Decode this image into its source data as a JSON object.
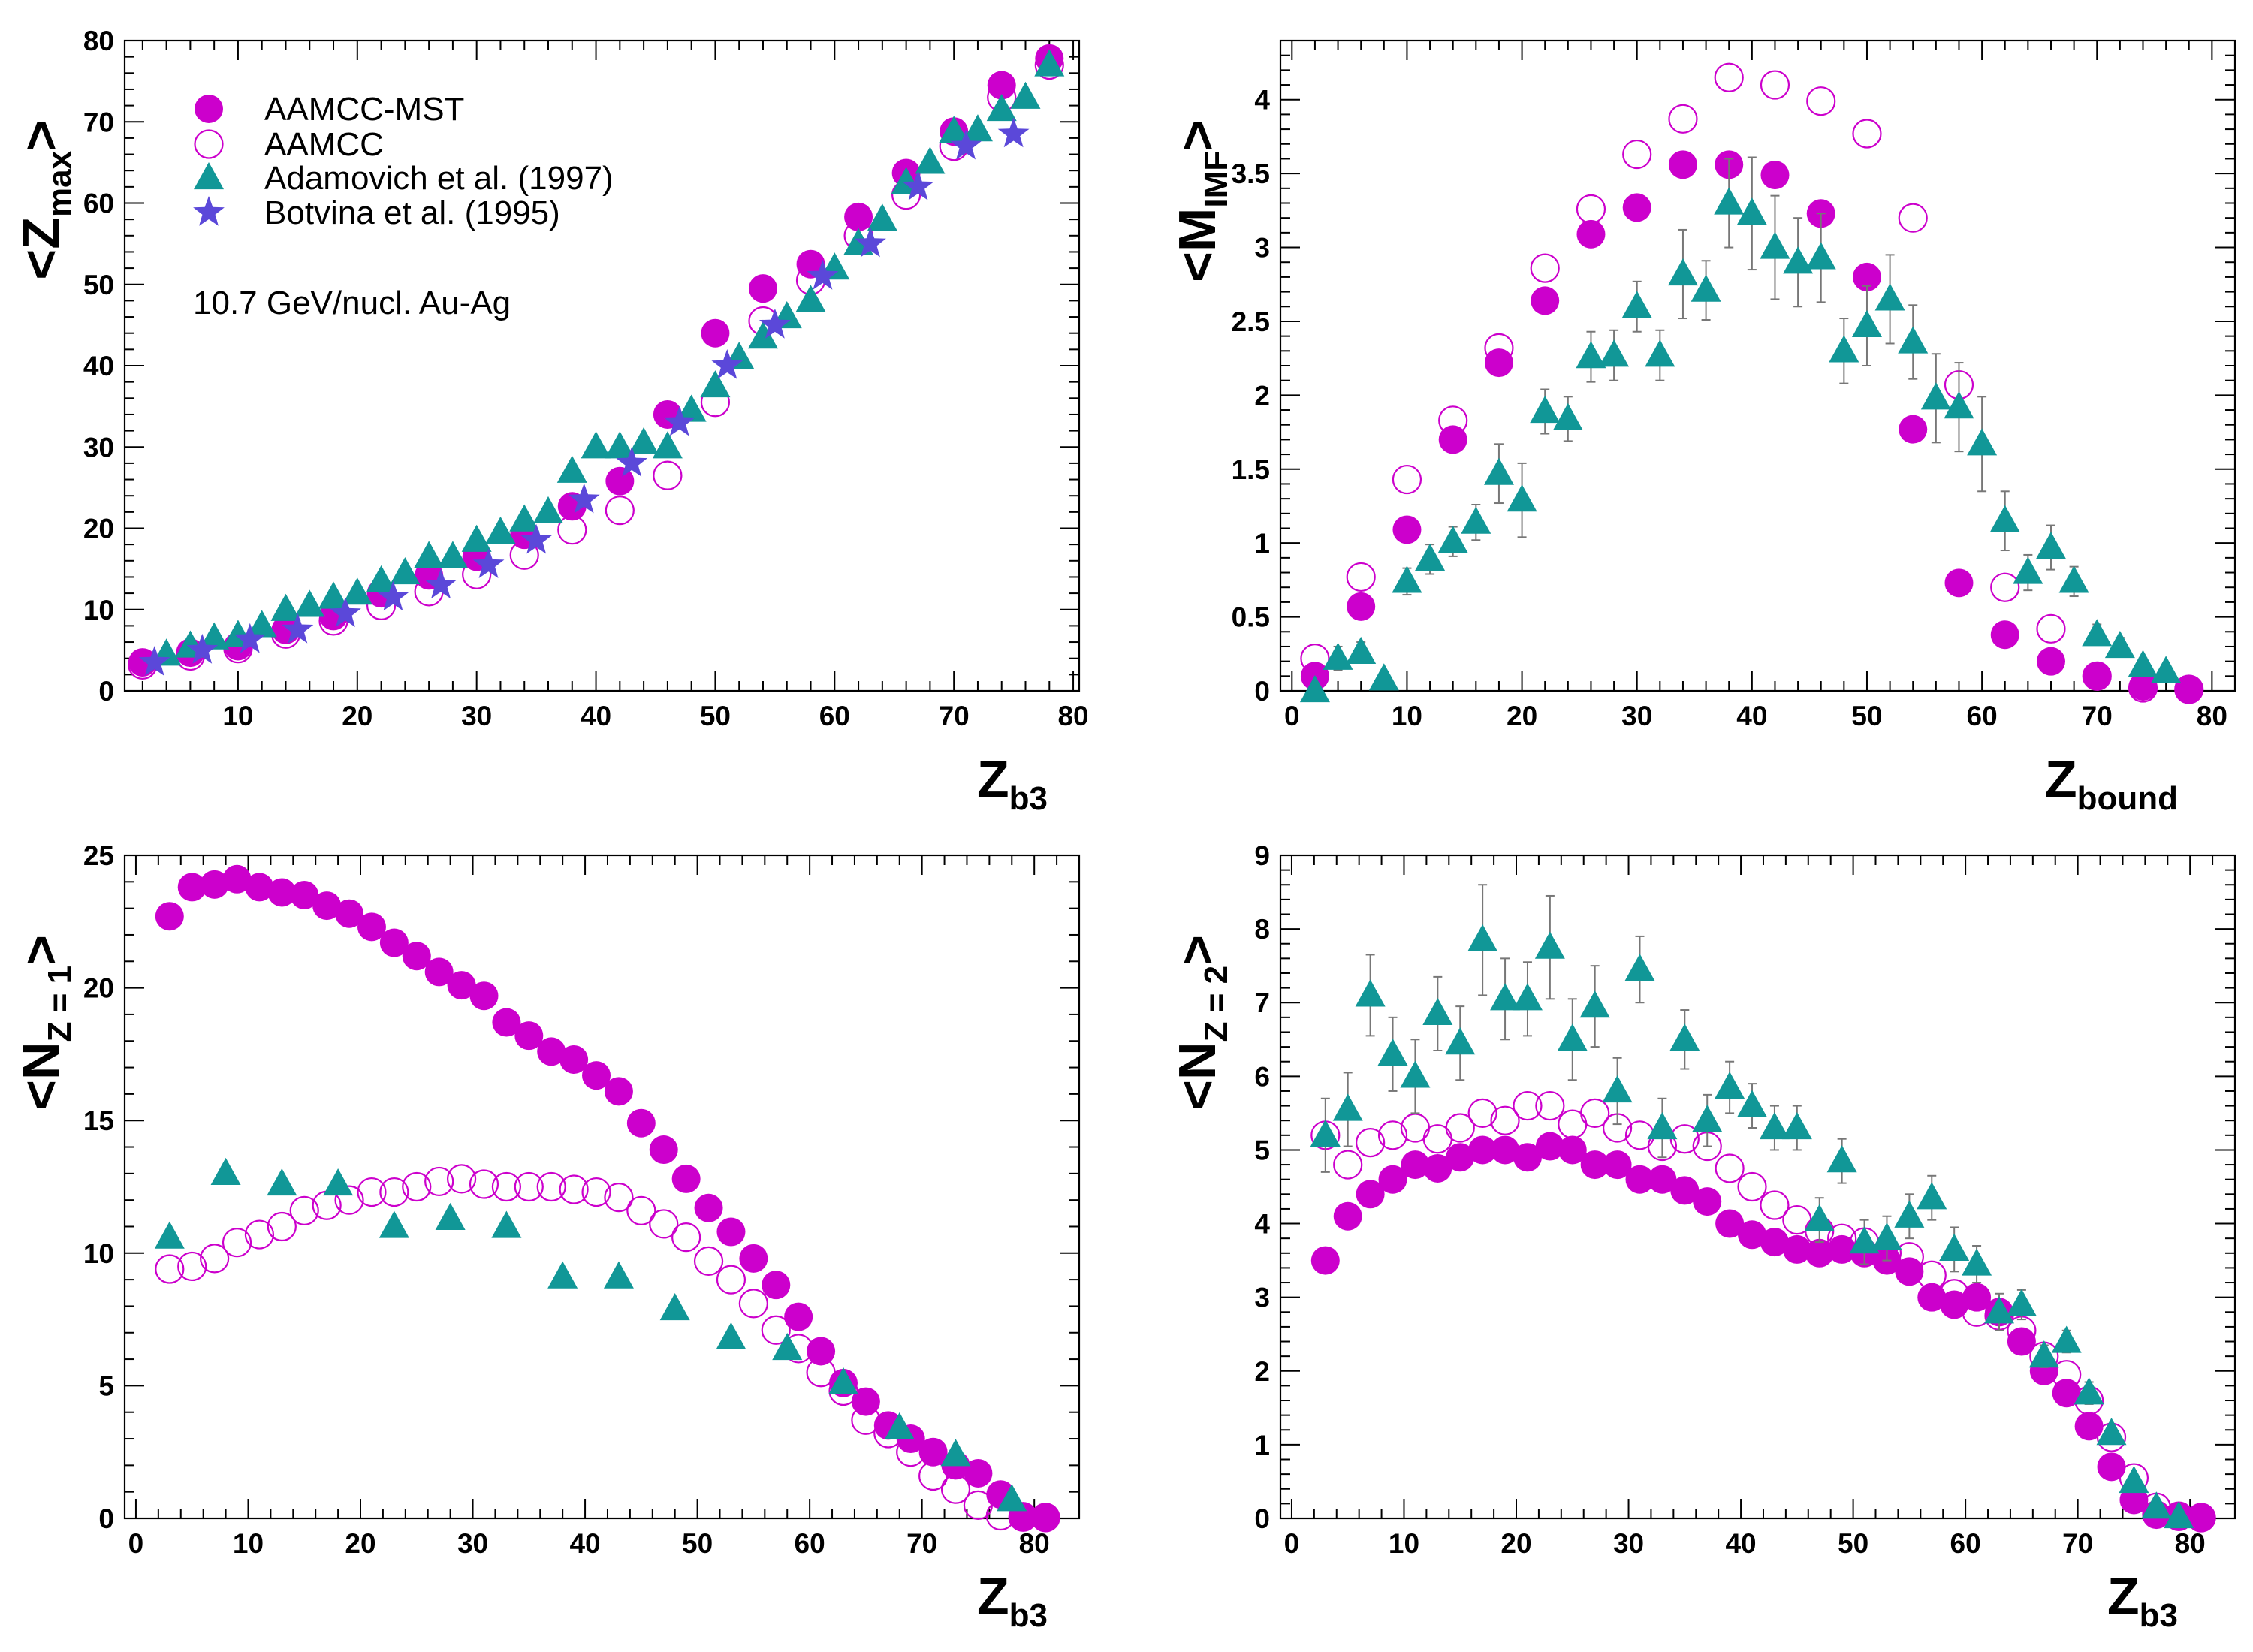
{
  "colors": {
    "mst": "#cc00cc",
    "aamcc": "#cc00cc",
    "adamovich": "#119797",
    "botvina": "#5b48d9",
    "errbar": "#777777"
  },
  "legend": {
    "mst": "AAMCC-MST",
    "aamcc": "AAMCC",
    "adamovich": "Adamovich et al. (1997)",
    "botvina": "Botvina et al. (1995)",
    "annotation": "10.7 GeV/nucl. Au-Ag"
  },
  "chart_data": [
    {
      "type": "scatter",
      "id": "zmax",
      "ylabel": {
        "main": "<Z",
        "sub": "max",
        "close": ">"
      },
      "xlabel": {
        "main": "Z",
        "sub": "b3"
      },
      "xlim": [
        0.5,
        80.5
      ],
      "ylim": [
        0,
        80
      ],
      "xticks": [
        10,
        20,
        30,
        40,
        50,
        60,
        70,
        80
      ],
      "yticks": [
        0,
        10,
        20,
        30,
        40,
        50,
        60,
        70,
        80
      ],
      "series": [
        {
          "name": "AAMCC-MST",
          "marker": "filled-circle",
          "x": [
            2,
            6,
            10,
            14,
            18,
            22,
            26,
            30,
            34,
            38,
            42,
            46,
            50,
            54,
            58,
            62,
            66,
            70,
            74,
            78
          ],
          "y": [
            3.5,
            4.7,
            5.5,
            7.5,
            9.2,
            12,
            14.2,
            16.5,
            19.2,
            22.7,
            25.8,
            34,
            44,
            49.5,
            52.5,
            58.3,
            63.7,
            68.8,
            74.5,
            77.8
          ]
        },
        {
          "name": "AAMCC",
          "marker": "open-circle",
          "x": [
            2,
            6,
            10,
            14,
            18,
            22,
            26,
            30,
            34,
            38,
            42,
            46,
            50,
            54,
            58,
            62,
            66,
            70,
            74,
            78
          ],
          "y": [
            3.2,
            4.3,
            5.2,
            7,
            8.6,
            10.5,
            12.2,
            14.3,
            16.7,
            19.8,
            22.2,
            26.5,
            35.5,
            45.5,
            50.5,
            56,
            61,
            67,
            73,
            77
          ]
        },
        {
          "name": "Adamovich et al. (1997)",
          "marker": "triangle",
          "x": [
            4,
            6,
            8,
            10,
            12,
            14,
            16,
            18,
            20,
            22,
            24,
            26,
            28,
            30,
            32,
            34,
            36,
            38,
            40,
            42,
            44,
            46,
            48,
            50,
            52,
            54,
            56,
            58,
            60,
            62,
            64,
            66,
            68,
            70,
            72,
            74,
            76,
            78
          ],
          "y": [
            4.5,
            5.5,
            6.5,
            6.8,
            8,
            10,
            10.5,
            11.5,
            12,
            13.5,
            14.5,
            16.5,
            16.5,
            18.5,
            19.5,
            21,
            22,
            27,
            30,
            30,
            30.5,
            30,
            34.5,
            37.5,
            41,
            43.5,
            46,
            48,
            52,
            55,
            58,
            62.5,
            65,
            68.8,
            69,
            71.5,
            73,
            77
          ]
        },
        {
          "name": "Botvina et al. (1995)",
          "marker": "star",
          "x": [
            3,
            7,
            11,
            15,
            19,
            23,
            27,
            31,
            35,
            39,
            43,
            47,
            51,
            55,
            59,
            63,
            67,
            71,
            75
          ],
          "y": [
            3.5,
            5,
            6.3,
            7.5,
            9.5,
            11.5,
            13,
            15.5,
            18.5,
            23.5,
            28,
            33,
            40,
            45,
            51,
            55,
            62,
            67,
            68.5
          ]
        }
      ]
    },
    {
      "type": "scatter",
      "id": "mimf",
      "ylabel": {
        "main": "<M",
        "sub": "IMF",
        "close": ">"
      },
      "xlabel": {
        "main": "Z",
        "sub": "bound"
      },
      "xlim": [
        -1,
        82
      ],
      "ylim": [
        0,
        4.4
      ],
      "xticks": [
        0,
        10,
        20,
        30,
        40,
        50,
        60,
        70,
        80
      ],
      "yticks": [
        0,
        0.5,
        1,
        1.5,
        2,
        2.5,
        3,
        3.5,
        4
      ],
      "series": [
        {
          "name": "AAMCC-MST",
          "marker": "filled-circle",
          "x": [
            2,
            6,
            10,
            14,
            18,
            22,
            26,
            30,
            34,
            38,
            42,
            46,
            50,
            54,
            58,
            62,
            66,
            70,
            74,
            78
          ],
          "y": [
            0.1,
            0.57,
            1.09,
            1.7,
            2.22,
            2.64,
            3.09,
            3.27,
            3.56,
            3.56,
            3.49,
            3.23,
            2.8,
            1.77,
            0.73,
            0.38,
            0.2,
            0.1,
            0.03,
            0.01
          ]
        },
        {
          "name": "AAMCC",
          "marker": "open-circle",
          "x": [
            2,
            6,
            10,
            14,
            18,
            22,
            26,
            30,
            34,
            38,
            42,
            46,
            50,
            54,
            58,
            62,
            66,
            70,
            74,
            78
          ],
          "y": [
            0.22,
            0.77,
            1.43,
            1.83,
            2.32,
            2.86,
            3.26,
            3.63,
            3.87,
            4.15,
            4.1,
            3.99,
            3.77,
            3.2,
            2.07,
            0.7,
            0.42,
            0.1,
            0.02,
            0.01
          ]
        },
        {
          "name": "Adamovich et al. (1997)",
          "marker": "triangle",
          "x": [
            2,
            4,
            6,
            8,
            10,
            12,
            14,
            16,
            18,
            20,
            22,
            24,
            26,
            28,
            30,
            32,
            34,
            36,
            38,
            40,
            42,
            44,
            46,
            48,
            50,
            52,
            54,
            56,
            58,
            60,
            62,
            64,
            66,
            68,
            70,
            72,
            74,
            76
          ],
          "y": [
            0,
            0.22,
            0.26,
            0.08,
            0.74,
            0.89,
            1.01,
            1.14,
            1.47,
            1.29,
            1.89,
            1.84,
            2.26,
            2.27,
            2.6,
            2.27,
            2.82,
            2.71,
            3.3,
            3.23,
            3,
            2.9,
            2.93,
            2.3,
            2.47,
            2.65,
            2.36,
            1.98,
            1.92,
            1.67,
            1.15,
            0.8,
            0.97,
            0.74,
            0.38,
            0.3,
            0.17,
            0.13
          ],
          "err": [
            0.02,
            0.08,
            0.07,
            0.05,
            0.09,
            0.1,
            0.1,
            0.12,
            0.2,
            0.25,
            0.15,
            0.15,
            0.17,
            0.17,
            0.17,
            0.17,
            0.3,
            0.2,
            0.3,
            0.38,
            0.35,
            0.3,
            0.3,
            0.22,
            0.27,
            0.3,
            0.25,
            0.3,
            0.3,
            0.32,
            0.2,
            0.12,
            0.15,
            0.1,
            0.07,
            0.06,
            0.05,
            0.04
          ]
        }
      ]
    },
    {
      "type": "scatter",
      "id": "nz1",
      "ylabel": {
        "main": "<N",
        "sub": "Z = 1",
        "close": ">"
      },
      "xlabel": {
        "main": "Z",
        "sub": "b3"
      },
      "xlim": [
        -1,
        84
      ],
      "ylim": [
        0,
        25
      ],
      "xticks": [
        0,
        10,
        20,
        30,
        40,
        50,
        60,
        70,
        80
      ],
      "yticks": [
        0,
        5,
        10,
        15,
        20,
        25
      ],
      "series": [
        {
          "name": "AAMCC-MST",
          "marker": "filled-circle",
          "x": [
            3,
            5,
            7,
            9,
            11,
            13,
            15,
            17,
            19,
            21,
            23,
            25,
            27,
            29,
            31,
            33,
            35,
            37,
            39,
            41,
            43,
            45,
            47,
            49,
            51,
            53,
            55,
            57,
            59,
            61,
            63,
            65,
            67,
            69,
            71,
            73,
            75,
            77,
            79,
            81
          ],
          "y": [
            22.7,
            23.8,
            23.9,
            24.1,
            23.8,
            23.6,
            23.5,
            23.1,
            22.8,
            22.3,
            21.7,
            21.2,
            20.6,
            20.1,
            19.7,
            18.7,
            18.2,
            17.6,
            17.3,
            16.7,
            16.1,
            14.9,
            13.9,
            12.8,
            11.7,
            10.8,
            9.8,
            8.8,
            7.6,
            6.3,
            5.1,
            4.4,
            3.5,
            3,
            2.5,
            2,
            1.7,
            0.9,
            0.08,
            0.05
          ]
        },
        {
          "name": "AAMCC",
          "marker": "open-circle",
          "x": [
            3,
            5,
            7,
            9,
            11,
            13,
            15,
            17,
            19,
            21,
            23,
            25,
            27,
            29,
            31,
            33,
            35,
            37,
            39,
            41,
            43,
            45,
            47,
            49,
            51,
            53,
            55,
            57,
            59,
            61,
            63,
            65,
            67,
            69,
            71,
            73,
            75,
            77,
            79,
            81
          ],
          "y": [
            9.4,
            9.5,
            9.8,
            10.4,
            10.7,
            11,
            11.6,
            11.8,
            12,
            12.3,
            12.3,
            12.5,
            12.7,
            12.8,
            12.6,
            12.5,
            12.5,
            12.5,
            12.4,
            12.3,
            12.1,
            11.6,
            11.1,
            10.6,
            9.7,
            9,
            8.1,
            7.1,
            6.4,
            5.5,
            4.8,
            3.7,
            3.2,
            2.5,
            1.6,
            1.1,
            0.5,
            0.1,
            0.05,
            0.03
          ]
        },
        {
          "name": "Adamovich et al. (1997)",
          "marker": "triangle",
          "x": [
            3,
            8,
            13,
            18,
            23,
            28,
            33,
            38,
            43,
            48,
            53,
            58,
            63,
            68,
            73,
            78
          ],
          "y": [
            10.6,
            13,
            12.6,
            12.6,
            11,
            11.3,
            11,
            9.1,
            9.1,
            7.9,
            6.8,
            6.4,
            5.1,
            3.4,
            2.4,
            0.7
          ]
        }
      ]
    },
    {
      "type": "scatter",
      "id": "nz2",
      "ylabel": {
        "main": "<N",
        "sub": "Z = 2",
        "close": ">"
      },
      "xlabel": {
        "main": "Z",
        "sub": "b3"
      },
      "xlim": [
        -1,
        84
      ],
      "ylim": [
        0,
        9
      ],
      "xticks": [
        0,
        10,
        20,
        30,
        40,
        50,
        60,
        70,
        80
      ],
      "yticks": [
        0,
        1,
        2,
        3,
        4,
        5,
        6,
        7,
        8,
        9
      ],
      "series": [
        {
          "name": "AAMCC-MST",
          "marker": "filled-circle",
          "x": [
            3,
            5,
            7,
            9,
            11,
            13,
            15,
            17,
            19,
            21,
            23,
            25,
            27,
            29,
            31,
            33,
            35,
            37,
            39,
            41,
            43,
            45,
            47,
            49,
            51,
            53,
            55,
            57,
            59,
            61,
            63,
            65,
            67,
            69,
            71,
            73,
            75,
            77,
            79,
            81
          ],
          "y": [
            3.5,
            4.1,
            4.4,
            4.6,
            4.8,
            4.75,
            4.9,
            5,
            5,
            4.9,
            5.05,
            5,
            4.8,
            4.8,
            4.6,
            4.6,
            4.45,
            4.3,
            4,
            3.85,
            3.75,
            3.65,
            3.6,
            3.65,
            3.6,
            3.5,
            3.35,
            3,
            2.9,
            3,
            2.8,
            2.4,
            2,
            1.7,
            1.25,
            0.7,
            0.25,
            0.05,
            0.02,
            0.01
          ]
        },
        {
          "name": "AAMCC",
          "marker": "open-circle",
          "x": [
            3,
            5,
            7,
            9,
            11,
            13,
            15,
            17,
            19,
            21,
            23,
            25,
            27,
            29,
            31,
            33,
            35,
            37,
            39,
            41,
            43,
            45,
            47,
            49,
            51,
            53,
            55,
            57,
            59,
            61,
            63,
            65,
            67,
            69,
            71,
            73,
            75,
            77,
            79,
            81
          ],
          "y": [
            5.2,
            4.8,
            5.1,
            5.2,
            5.3,
            5.15,
            5.3,
            5.5,
            5.4,
            5.6,
            5.6,
            5.35,
            5.5,
            5.3,
            5.2,
            5.05,
            5.15,
            5.05,
            4.75,
            4.5,
            4.25,
            4.05,
            3.9,
            3.8,
            3.75,
            3.6,
            3.55,
            3.3,
            3.05,
            2.8,
            2.75,
            2.55,
            2.2,
            1.95,
            1.6,
            1.1,
            0.55,
            0.15,
            0.03,
            0.01
          ]
        },
        {
          "name": "Adamovich et al. (1997)",
          "marker": "triangle",
          "x": [
            3,
            5,
            7,
            9,
            11,
            13,
            15,
            17,
            19,
            21,
            23,
            25,
            27,
            29,
            31,
            33,
            35,
            37,
            39,
            41,
            43,
            45,
            47,
            49,
            51,
            53,
            55,
            57,
            59,
            61,
            63,
            65,
            67,
            69,
            71,
            73,
            75,
            77,
            79
          ],
          "y": [
            5.2,
            5.55,
            7.1,
            6.3,
            6,
            6.85,
            6.45,
            7.85,
            7.05,
            7.05,
            7.75,
            6.5,
            6.95,
            5.8,
            7.45,
            5.3,
            6.5,
            5.4,
            5.85,
            5.6,
            5.3,
            5.3,
            4.05,
            4.85,
            3.75,
            3.8,
            4.1,
            4.35,
            3.65,
            3.45,
            2.8,
            2.9,
            2.2,
            2.4,
            1.7,
            1.15,
            0.5,
            0.15,
            0.02
          ],
          "err": [
            0.5,
            0.5,
            0.55,
            0.5,
            0.5,
            0.5,
            0.5,
            0.75,
            0.55,
            0.5,
            0.7,
            0.55,
            0.55,
            0.45,
            0.45,
            0.4,
            0.4,
            0.35,
            0.35,
            0.3,
            0.3,
            0.3,
            0.3,
            0.3,
            0.3,
            0.3,
            0.3,
            0.3,
            0.3,
            0.25,
            0.25,
            0.2,
            0.15,
            0.15,
            0.15,
            0.1,
            0.08,
            0.05,
            0.02
          ]
        }
      ]
    }
  ]
}
